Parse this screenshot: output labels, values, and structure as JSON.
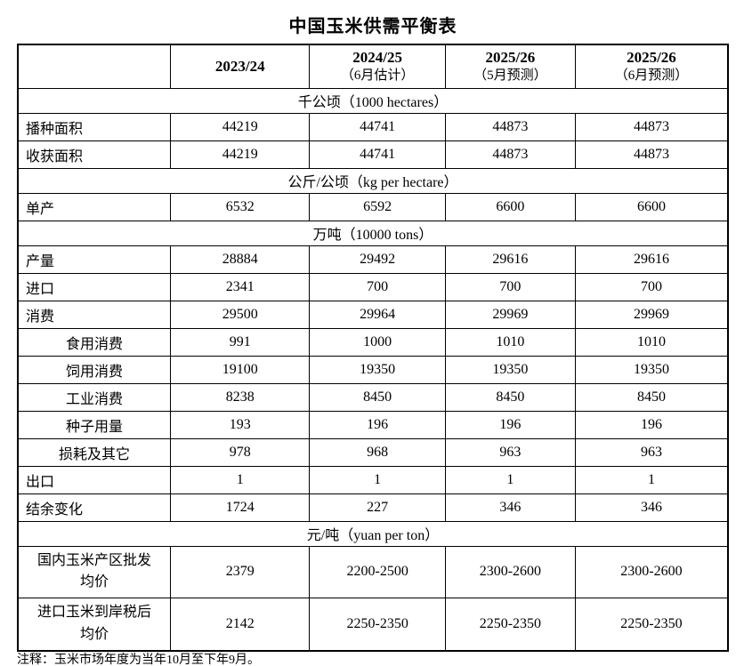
{
  "title": "中国玉米供需平衡表",
  "table": {
    "header": [
      {
        "year": "",
        "note": ""
      },
      {
        "year": "2023/24",
        "note": ""
      },
      {
        "year": "2024/25",
        "note": "（6月估计）"
      },
      {
        "year": "2025/26",
        "note": "（5月预测）"
      },
      {
        "year": "2025/26",
        "note": "（6月预测）"
      }
    ],
    "rows": [
      {
        "type": "unit",
        "label": "千公顷（1000 hectares）"
      },
      {
        "type": "data",
        "label": "播种面积",
        "values": [
          "44219",
          "44741",
          "44873",
          "44873"
        ]
      },
      {
        "type": "data",
        "label": "收获面积",
        "values": [
          "44219",
          "44741",
          "44873",
          "44873"
        ]
      },
      {
        "type": "unit",
        "label": "公斤/公顷（kg per hectare）"
      },
      {
        "type": "data",
        "label": "单产",
        "values": [
          "6532",
          "6592",
          "6600",
          "6600"
        ]
      },
      {
        "type": "unit",
        "label": "万吨（10000 tons）"
      },
      {
        "type": "data",
        "label": "产量",
        "values": [
          "28884",
          "29492",
          "29616",
          "29616"
        ]
      },
      {
        "type": "data",
        "label": "进口",
        "values": [
          "2341",
          "700",
          "700",
          "700"
        ]
      },
      {
        "type": "data",
        "label": "消费",
        "values": [
          "29500",
          "29964",
          "29969",
          "29969"
        ]
      },
      {
        "type": "sub",
        "label": "食用消费",
        "values": [
          "991",
          "1000",
          "1010",
          "1010"
        ]
      },
      {
        "type": "sub",
        "label": "饲用消费",
        "values": [
          "19100",
          "19350",
          "19350",
          "19350"
        ]
      },
      {
        "type": "sub",
        "label": "工业消费",
        "values": [
          "8238",
          "8450",
          "8450",
          "8450"
        ]
      },
      {
        "type": "sub",
        "label": "种子用量",
        "values": [
          "193",
          "196",
          "196",
          "196"
        ]
      },
      {
        "type": "sub",
        "label": "损耗及其它",
        "values": [
          "978",
          "968",
          "963",
          "963"
        ]
      },
      {
        "type": "data",
        "label": "出口",
        "values": [
          "1",
          "1",
          "1",
          "1"
        ]
      },
      {
        "type": "data",
        "label": "结余变化",
        "values": [
          "1724",
          "227",
          "346",
          "346"
        ]
      },
      {
        "type": "unit",
        "label": "元/吨（yuan per ton）"
      },
      {
        "type": "price",
        "label": "国内玉米产区批发均价",
        "values": [
          "2379",
          "2200-2500",
          "2300-2600",
          "2300-2600"
        ]
      },
      {
        "type": "price",
        "label": "进口玉米到岸税后均价",
        "values": [
          "2142",
          "2250-2350",
          "2250-2350",
          "2250-2350"
        ]
      }
    ]
  },
  "footnote": "注释：玉米市场年度为当年10月至下年9月。"
}
